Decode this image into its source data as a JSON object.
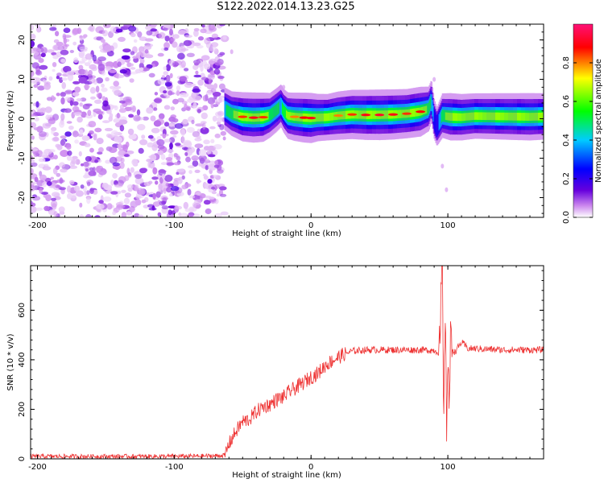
{
  "title": "S122.2022.014.13.23.G25",
  "chart_data": [
    {
      "type": "heatmap",
      "xlabel": "Height of straight line (km)",
      "ylabel": "Frequency (Hz)",
      "xlim": [
        -205,
        170
      ],
      "ylim": [
        -25,
        24
      ],
      "xticks": [
        -200,
        -100,
        0,
        100
      ],
      "yticks": [
        -20,
        -10,
        0,
        10,
        20
      ],
      "colorbar": {
        "label": "Normalized spectral amplitude",
        "range": [
          0,
          1
        ],
        "ticks": [
          0.0,
          0.2,
          0.4,
          0.6,
          0.8
        ],
        "colors": [
          "#ffffff",
          "#cc88ee",
          "#6600dd",
          "#0000ff",
          "#00ccff",
          "#00ff00",
          "#ffff00",
          "#ff0000",
          "#ff1177"
        ]
      },
      "noise_region_x": [
        -205,
        -63
      ],
      "ridge": {
        "x": [
          -63,
          -58,
          -50,
          -42,
          -35,
          -30,
          -25,
          -22,
          -20,
          -17,
          -12,
          -5,
          0,
          5,
          12,
          20,
          30,
          40,
          50,
          60,
          70,
          80,
          86,
          88,
          90,
          92,
          96,
          102,
          110,
          120,
          140,
          160,
          170
        ],
        "y": [
          2.5,
          1.3,
          0.5,
          0.3,
          0.4,
          0.9,
          2.3,
          3.3,
          2.0,
          0.8,
          0.5,
          0.3,
          0.2,
          0.3,
          0.4,
          0.8,
          1.1,
          1.0,
          1.0,
          1.1,
          1.3,
          1.8,
          2.5,
          4.5,
          0.0,
          -2.0,
          0.8,
          0.5,
          0.4,
          0.7,
          0.6,
          0.5,
          0.6
        ],
        "amplitude": [
          0.5,
          0.6,
          0.85,
          0.9,
          0.85,
          0.6,
          0.55,
          0.5,
          0.55,
          0.7,
          0.8,
          0.88,
          0.9,
          0.75,
          0.7,
          0.8,
          0.85,
          0.9,
          0.92,
          0.9,
          0.85,
          0.88,
          0.6,
          0.5,
          0.35,
          0.3,
          0.6,
          0.75,
          0.7,
          0.65,
          0.7,
          0.75,
          0.7
        ]
      }
    },
    {
      "type": "line",
      "xlabel": "Height of straight line (km)",
      "ylabel": "SNR (10 * v/v)",
      "xlim": [
        -205,
        170
      ],
      "ylim": [
        0,
        780
      ],
      "xticks": [
        -200,
        -100,
        0,
        100
      ],
      "yticks": [
        0,
        200,
        400,
        600
      ],
      "color": "#ee3333",
      "series": [
        {
          "x": [
            -205,
            -150,
            -100,
            -70,
            -63,
            -60,
            -55,
            -50,
            -45,
            -40,
            -35,
            -30,
            -25,
            -20,
            -15,
            -10,
            -5,
            0,
            5,
            10,
            15,
            20,
            25,
            30,
            40,
            50,
            60,
            70,
            80,
            90,
            94,
            96,
            97,
            98,
            99,
            100,
            101,
            102,
            105,
            110,
            115,
            120,
            140,
            160,
            170
          ],
          "y": [
            10,
            10,
            10,
            12,
            15,
            60,
            110,
            150,
            160,
            190,
            210,
            220,
            240,
            250,
            275,
            290,
            310,
            330,
            345,
            375,
            395,
            410,
            425,
            435,
            440,
            440,
            440,
            440,
            440,
            438,
            430,
            780,
            60,
            700,
            50,
            500,
            200,
            460,
            430,
            470,
            445,
            445,
            440,
            440,
            440
          ]
        }
      ]
    }
  ]
}
